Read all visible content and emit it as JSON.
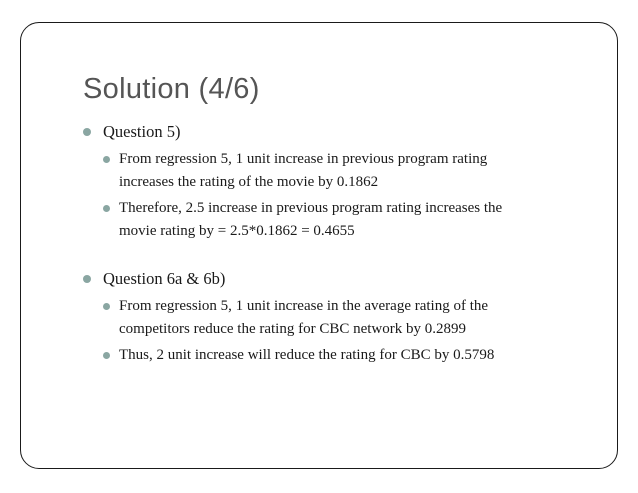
{
  "slide": {
    "title": "Solution (4/6)",
    "sections": [
      {
        "heading": "Question 5)",
        "items": [
          {
            "line1": "From regression 5, 1 unit increase in previous program rating",
            "line2": "increases the rating of the movie by 0.1862"
          },
          {
            "line1": "Therefore, 2.5 increase in previous program rating increases the",
            "line2": "movie rating by = 2.5*0.1862 = 0.4655"
          }
        ]
      },
      {
        "heading": "Question 6a & 6b)",
        "items": [
          {
            "line1": "From regression 5, 1 unit increase in the average rating of the",
            "line2": "competitors reduce the rating for CBC network by 0.2899"
          },
          {
            "line1": "Thus, 2 unit increase will reduce the rating for CBC by 0.5798"
          }
        ]
      }
    ],
    "colors": {
      "title": "#555555",
      "text": "#1a1a1a",
      "bullet": "#8aa6a2",
      "border": "#1a1a1a"
    }
  }
}
